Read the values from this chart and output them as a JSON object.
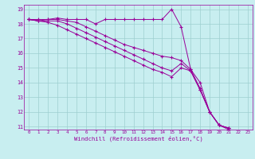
{
  "xlabel": "Windchill (Refroidissement éolien,°C)",
  "background_color": "#c8eef0",
  "grid_color": "#9ecfcf",
  "line_color": "#990099",
  "xmin": 0,
  "xmax": 23,
  "ymin": 11,
  "ymax": 19,
  "lines": [
    [
      18.3,
      18.3,
      18.3,
      18.4,
      18.3,
      18.3,
      18.3,
      18.0,
      18.3,
      18.3,
      18.3,
      18.3,
      18.3,
      18.3,
      18.3,
      19.0,
      17.8,
      14.9,
      13.6,
      12.0,
      11.1,
      10.8
    ],
    [
      18.3,
      18.2,
      18.3,
      18.3,
      18.2,
      18.1,
      17.8,
      17.5,
      17.2,
      16.9,
      16.6,
      16.4,
      16.2,
      16.0,
      15.8,
      15.7,
      15.5,
      14.9,
      14.0,
      12.0,
      11.1,
      10.9
    ],
    [
      18.3,
      18.2,
      18.2,
      18.2,
      18.0,
      17.7,
      17.4,
      17.1,
      16.8,
      16.5,
      16.2,
      15.9,
      15.6,
      15.3,
      15.0,
      14.8,
      15.3,
      14.8,
      13.5,
      12.0,
      11.1,
      10.9
    ],
    [
      18.3,
      18.2,
      18.1,
      17.9,
      17.6,
      17.3,
      17.0,
      16.7,
      16.4,
      16.1,
      15.8,
      15.5,
      15.2,
      14.9,
      14.7,
      14.4,
      15.0,
      14.8,
      13.5,
      12.0,
      11.1,
      10.9
    ]
  ]
}
